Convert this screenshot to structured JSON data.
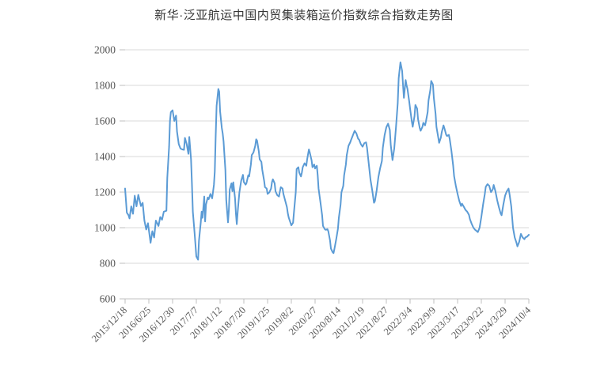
{
  "title": "新华·泛亚航运中国内贸集装箱运价指数综合指数走势图",
  "colors": {
    "series_line": "#5b9bd5",
    "gridline": "#d9d9d9",
    "axis_line": "#c0c0c0",
    "tick_mark": "#bfbfbf",
    "tick_text": "#555555",
    "title_text": "#363636",
    "background": "#ffffff"
  },
  "chart_data": {
    "type": "line",
    "title": "新华·泛亚航运中国内贸集装箱运价指数综合指数走势图",
    "xlabel": "",
    "ylabel": "",
    "ylim": [
      600,
      2000
    ],
    "y_ticks": [
      600,
      800,
      1000,
      1200,
      1400,
      1600,
      1800,
      2000
    ],
    "grid": "horizontal",
    "legend": "none",
    "x_unit": "week-index (weekly data, 2015/12/18 to 2024/10/4)",
    "x_total_weeks": 459,
    "x_tick_weeks": [
      0,
      27,
      54,
      81,
      108,
      135,
      162,
      189,
      216,
      243,
      270,
      297,
      324,
      351,
      378,
      405,
      432,
      459
    ],
    "x_tick_labels": [
      "2015/12/18",
      "2016/6/25",
      "2016/12/30",
      "2017/7/7",
      "2018/1/12",
      "2018/7/20",
      "2019/1/25",
      "2019/8/2",
      "2020/2/7",
      "2020/8/14",
      "2021/2/19",
      "2021/8/27",
      "2022/3/4",
      "2022/9/9",
      "2023/3/17",
      "2023/9/22",
      "2024/3/29",
      "2024/10/4"
    ],
    "series": [
      {
        "name": "综合指数",
        "points": [
          [
            0,
            1220
          ],
          [
            2,
            1085
          ],
          [
            4,
            1070
          ],
          [
            5,
            1052
          ],
          [
            7,
            1120
          ],
          [
            9,
            1078
          ],
          [
            11,
            1180
          ],
          [
            13,
            1120
          ],
          [
            15,
            1185
          ],
          [
            18,
            1122
          ],
          [
            20,
            1140
          ],
          [
            22,
            1040
          ],
          [
            24,
            990
          ],
          [
            26,
            1025
          ],
          [
            29,
            915
          ],
          [
            31,
            980
          ],
          [
            33,
            945
          ],
          [
            35,
            1040
          ],
          [
            38,
            1010
          ],
          [
            40,
            1060
          ],
          [
            42,
            1045
          ],
          [
            44,
            1090
          ],
          [
            47,
            1095
          ],
          [
            48,
            1280
          ],
          [
            50,
            1455
          ],
          [
            51,
            1600
          ],
          [
            52,
            1650
          ],
          [
            54,
            1660
          ],
          [
            56,
            1600
          ],
          [
            58,
            1630
          ],
          [
            59,
            1540
          ],
          [
            61,
            1470
          ],
          [
            63,
            1445
          ],
          [
            65,
            1440
          ],
          [
            67,
            1438
          ],
          [
            68,
            1505
          ],
          [
            70,
            1470
          ],
          [
            72,
            1415
          ],
          [
            73,
            1510
          ],
          [
            75,
            1385
          ],
          [
            76,
            1253
          ],
          [
            77,
            1090
          ],
          [
            79,
            970
          ],
          [
            80,
            905
          ],
          [
            81,
            838
          ],
          [
            83,
            820
          ],
          [
            84,
            925
          ],
          [
            86,
            1030
          ],
          [
            87,
            1090
          ],
          [
            88,
            1055
          ],
          [
            90,
            1175
          ],
          [
            91,
            1035
          ],
          [
            92,
            1130
          ],
          [
            94,
            1170
          ],
          [
            95,
            1160
          ],
          [
            97,
            1190
          ],
          [
            99,
            1165
          ],
          [
            101,
            1240
          ],
          [
            102,
            1315
          ],
          [
            103,
            1507
          ],
          [
            104,
            1685
          ],
          [
            106,
            1780
          ],
          [
            107,
            1765
          ],
          [
            108,
            1655
          ],
          [
            110,
            1560
          ],
          [
            111,
            1530
          ],
          [
            112,
            1485
          ],
          [
            114,
            1325
          ],
          [
            115,
            1155
          ],
          [
            117,
            1030
          ],
          [
            118,
            1100
          ],
          [
            119,
            1215
          ],
          [
            121,
            1250
          ],
          [
            122,
            1205
          ],
          [
            123,
            1255
          ],
          [
            125,
            1165
          ],
          [
            126,
            1080
          ],
          [
            127,
            1020
          ],
          [
            128,
            1086
          ],
          [
            129,
            1145
          ],
          [
            130,
            1198
          ],
          [
            132,
            1265
          ],
          [
            134,
            1297
          ],
          [
            135,
            1257
          ],
          [
            137,
            1242
          ],
          [
            138,
            1250
          ],
          [
            140,
            1295
          ],
          [
            141,
            1288
          ],
          [
            143,
            1355
          ],
          [
            144,
            1408
          ],
          [
            146,
            1423
          ],
          [
            148,
            1460
          ],
          [
            149,
            1497
          ],
          [
            150,
            1490
          ],
          [
            152,
            1430
          ],
          [
            153,
            1385
          ],
          [
            155,
            1370
          ],
          [
            156,
            1325
          ],
          [
            158,
            1265
          ],
          [
            159,
            1228
          ],
          [
            161,
            1220
          ],
          [
            162,
            1190
          ],
          [
            164,
            1198
          ],
          [
            166,
            1220
          ],
          [
            167,
            1257
          ],
          [
            168,
            1272
          ],
          [
            170,
            1250
          ],
          [
            171,
            1205
          ],
          [
            173,
            1183
          ],
          [
            175,
            1175
          ],
          [
            176,
            1205
          ],
          [
            177,
            1228
          ],
          [
            179,
            1220
          ],
          [
            180,
            1190
          ],
          [
            182,
            1153
          ],
          [
            184,
            1116
          ],
          [
            185,
            1080
          ],
          [
            186,
            1057
          ],
          [
            188,
            1028
          ],
          [
            189,
            1013
          ],
          [
            191,
            1028
          ],
          [
            192,
            1086
          ],
          [
            194,
            1200
          ],
          [
            195,
            1330
          ],
          [
            197,
            1340
          ],
          [
            198,
            1310
          ],
          [
            200,
            1288
          ],
          [
            201,
            1310
          ],
          [
            202,
            1340
          ],
          [
            204,
            1362
          ],
          [
            206,
            1348
          ],
          [
            207,
            1385
          ],
          [
            209,
            1440
          ],
          [
            210,
            1423
          ],
          [
            212,
            1378
          ],
          [
            213,
            1340
          ],
          [
            215,
            1355
          ],
          [
            216,
            1333
          ],
          [
            218,
            1348
          ],
          [
            219,
            1295
          ],
          [
            220,
            1220
          ],
          [
            222,
            1145
          ],
          [
            224,
            1070
          ],
          [
            225,
            1010
          ],
          [
            227,
            992
          ],
          [
            228,
            988
          ],
          [
            230,
            992
          ],
          [
            231,
            980
          ],
          [
            233,
            928
          ],
          [
            234,
            883
          ],
          [
            236,
            862
          ],
          [
            237,
            857
          ],
          [
            238,
            880
          ],
          [
            240,
            935
          ],
          [
            242,
            995
          ],
          [
            243,
            1055
          ],
          [
            245,
            1130
          ],
          [
            246,
            1198
          ],
          [
            248,
            1235
          ],
          [
            249,
            1295
          ],
          [
            251,
            1355
          ],
          [
            252,
            1408
          ],
          [
            254,
            1460
          ],
          [
            256,
            1480
          ],
          [
            257,
            1495
          ],
          [
            259,
            1520
          ],
          [
            261,
            1545
          ],
          [
            263,
            1530
          ],
          [
            265,
            1500
          ],
          [
            266,
            1495
          ],
          [
            268,
            1470
          ],
          [
            270,
            1455
          ],
          [
            272,
            1475
          ],
          [
            274,
            1480
          ],
          [
            275,
            1450
          ],
          [
            277,
            1360
          ],
          [
            279,
            1270
          ],
          [
            281,
            1210
          ],
          [
            283,
            1140
          ],
          [
            284,
            1150
          ],
          [
            286,
            1210
          ],
          [
            288,
            1285
          ],
          [
            290,
            1335
          ],
          [
            292,
            1375
          ],
          [
            293,
            1450
          ],
          [
            295,
            1520
          ],
          [
            297,
            1565
          ],
          [
            299,
            1585
          ],
          [
            301,
            1550
          ],
          [
            302,
            1465
          ],
          [
            304,
            1380
          ],
          [
            306,
            1445
          ],
          [
            308,
            1565
          ],
          [
            310,
            1700
          ],
          [
            311,
            1840
          ],
          [
            313,
            1930
          ],
          [
            315,
            1880
          ],
          [
            316,
            1800
          ],
          [
            317,
            1730
          ],
          [
            319,
            1830
          ],
          [
            320,
            1800
          ],
          [
            321,
            1780
          ],
          [
            323,
            1710
          ],
          [
            324,
            1670
          ],
          [
            326,
            1597
          ],
          [
            327,
            1567
          ],
          [
            329,
            1627
          ],
          [
            330,
            1690
          ],
          [
            332,
            1670
          ],
          [
            333,
            1612
          ],
          [
            335,
            1560
          ],
          [
            336,
            1545
          ],
          [
            338,
            1567
          ],
          [
            339,
            1590
          ],
          [
            341,
            1575
          ],
          [
            342,
            1597
          ],
          [
            344,
            1650
          ],
          [
            345,
            1715
          ],
          [
            347,
            1775
          ],
          [
            348,
            1825
          ],
          [
            350,
            1805
          ],
          [
            351,
            1730
          ],
          [
            353,
            1640
          ],
          [
            354,
            1567
          ],
          [
            356,
            1507
          ],
          [
            357,
            1477
          ],
          [
            359,
            1507
          ],
          [
            360,
            1537
          ],
          [
            362,
            1575
          ],
          [
            363,
            1560
          ],
          [
            365,
            1522
          ],
          [
            366,
            1515
          ],
          [
            368,
            1522
          ],
          [
            369,
            1500
          ],
          [
            371,
            1433
          ],
          [
            373,
            1350
          ],
          [
            374,
            1290
          ],
          [
            376,
            1235
          ],
          [
            378,
            1190
          ],
          [
            380,
            1150
          ],
          [
            382,
            1122
          ],
          [
            383,
            1135
          ],
          [
            385,
            1118
          ],
          [
            387,
            1100
          ],
          [
            389,
            1090
          ],
          [
            391,
            1072
          ],
          [
            392,
            1048
          ],
          [
            394,
            1022
          ],
          [
            396,
            1000
          ],
          [
            398,
            988
          ],
          [
            400,
            980
          ],
          [
            401,
            975
          ],
          [
            403,
            1000
          ],
          [
            405,
            1060
          ],
          [
            407,
            1130
          ],
          [
            409,
            1190
          ],
          [
            410,
            1230
          ],
          [
            412,
            1245
          ],
          [
            414,
            1235
          ],
          [
            416,
            1200
          ],
          [
            418,
            1215
          ],
          [
            419,
            1240
          ],
          [
            421,
            1205
          ],
          [
            423,
            1155
          ],
          [
            425,
            1115
          ],
          [
            427,
            1080
          ],
          [
            428,
            1070
          ],
          [
            430,
            1130
          ],
          [
            432,
            1180
          ],
          [
            434,
            1205
          ],
          [
            436,
            1220
          ],
          [
            437,
            1190
          ],
          [
            439,
            1120
          ],
          [
            441,
            1000
          ],
          [
            443,
            945
          ],
          [
            445,
            915
          ],
          [
            446,
            895
          ],
          [
            448,
            920
          ],
          [
            450,
            965
          ],
          [
            452,
            945
          ],
          [
            454,
            935
          ],
          [
            455,
            945
          ],
          [
            457,
            950
          ],
          [
            459,
            960
          ]
        ]
      }
    ]
  }
}
